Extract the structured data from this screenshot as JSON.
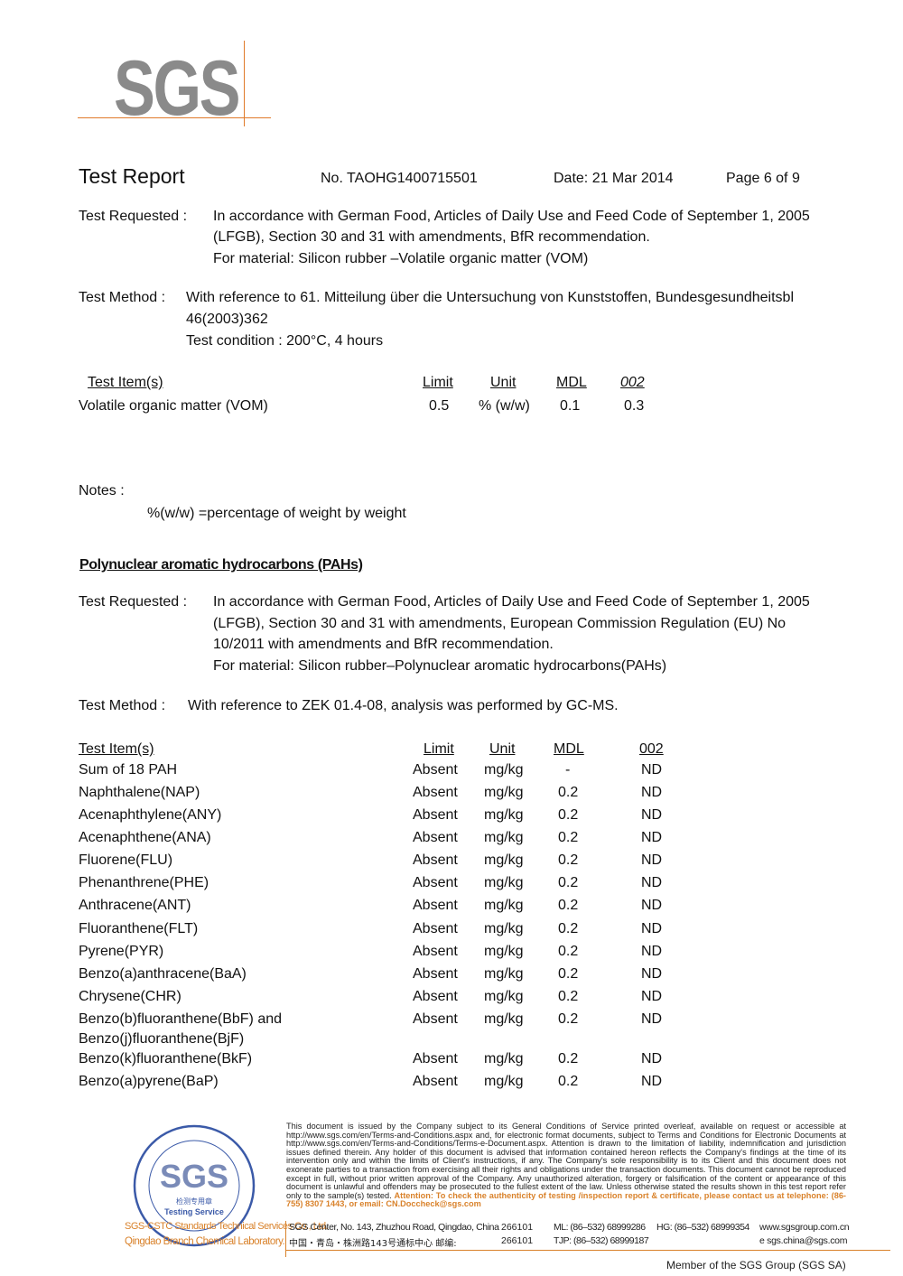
{
  "logo": {
    "text": "SGS"
  },
  "header": {
    "title": "Test Report",
    "number": "No. TAOHG1400715501",
    "date": "Date: 21 Mar 2014",
    "page": "Page 6 of 9"
  },
  "vom": {
    "requested_label": "Test Requested :",
    "requested_lines": [
      "In accordance with German Food, Articles of Daily Use and Feed Code of September 1, 2005",
      "(LFGB), Section 30 and 31 with amendments, BfR recommendation.",
      "For material: Silicon rubber –Volatile organic matter (VOM)"
    ],
    "method_label": "Test Method :",
    "method_lines": [
      "With reference to 61. Mitteilung über die Untersuchung von Kunststoffen, Bundesgesundheitsbl",
      "46(2003)362",
      "Test condition : 200°C, 4 hours"
    ],
    "headers": [
      "Test Item(s)",
      "Limit",
      "Unit",
      "MDL",
      "002"
    ],
    "rows": [
      [
        "Volatile organic matter (VOM)",
        "0.5",
        "% (w/w)",
        "0.1",
        "0.3"
      ]
    ],
    "notes_label": "Notes :",
    "note": "%(w/w) =percentage of weight by weight"
  },
  "pah": {
    "section_title": "Polynuclear aromatic hydrocarbons (PAHs)",
    "requested_label": "Test Requested :",
    "requested_lines": [
      "In accordance with German Food, Articles of Daily Use and Feed Code of September 1, 2005",
      "(LFGB), Section 30 and 31 with amendments, European Commission Regulation (EU) No",
      "10/2011 with amendments and BfR recommendation.",
      "For material: Silicon rubber–Polynuclear aromatic hydrocarbons(PAHs)"
    ],
    "method_label": "Test Method :",
    "method_line": "With reference to ZEK 01.4-08, analysis was performed by GC-MS.",
    "headers": [
      "Test Item(s)",
      "Limit",
      "Unit",
      "MDL",
      "002"
    ],
    "rows": [
      [
        "Sum of 18 PAH",
        "Absent",
        "mg/kg",
        "-",
        "ND"
      ],
      [
        "Naphthalene(NAP)",
        "Absent",
        "mg/kg",
        "0.2",
        "ND"
      ],
      [
        "Acenaphthylene(ANY)",
        "Absent",
        "mg/kg",
        "0.2",
        "ND"
      ],
      [
        "Acenaphthene(ANA)",
        "Absent",
        "mg/kg",
        "0.2",
        "ND"
      ],
      [
        "Fluorene(FLU)",
        "Absent",
        "mg/kg",
        "0.2",
        "ND"
      ],
      [
        "Phenanthrene(PHE)",
        "Absent",
        "mg/kg",
        "0.2",
        "ND"
      ],
      [
        "Anthracene(ANT)",
        "Absent",
        "mg/kg",
        "0.2",
        "ND"
      ],
      [
        "Fluoranthene(FLT)",
        "Absent",
        "mg/kg",
        "0.2",
        "ND"
      ],
      [
        "Pyrene(PYR)",
        "Absent",
        "mg/kg",
        "0.2",
        "ND"
      ],
      [
        "Benzo(a)anthracene(BaA)",
        "Absent",
        "mg/kg",
        "0.2",
        "ND"
      ],
      [
        "Chrysene(CHR)",
        "Absent",
        "mg/kg",
        "0.2",
        "ND"
      ],
      [
        "Benzo(b)fluoranthene(BbF) and",
        "Absent",
        "mg/kg",
        "0.2",
        "ND"
      ],
      [
        "Benzo(j)fluoranthene(BjF)",
        "",
        "",
        "",
        ""
      ],
      [
        "Benzo(k)fluoranthene(BkF)",
        "Absent",
        "mg/kg",
        "0.2",
        "ND"
      ],
      [
        "Benzo(a)pyrene(BaP)",
        "Absent",
        "mg/kg",
        "0.2",
        "ND"
      ]
    ]
  },
  "footer": {
    "disclaimer": "This document is issued by the Company subject to its General Conditions of Service printed overleaf, available on request or accessible at http://www.sgs.com/en/Terms-and-Conditions.aspx and, for electronic format documents, subject to Terms and Conditions for Electronic Documents at http://www.sgs.com/en/Terms-and-Conditions/Terms-e-Document.aspx. Attention is drawn to the limitation of liability, indemnification and jurisdiction issues defined therein. Any holder of this document is advised that information contained hereon reflects the Company's findings at the time of its intervention only and within the limits of Client's instructions, if any. The Company's sole responsibility is to its Client and this document does not exonerate parties to a transaction from exercising all their rights and obligations under the transaction documents. This document cannot be reproduced except in full, without prior written approval of the Company. Any unauthorized alteration, forgery or falsification of the content or appearance of this document is unlawful and offenders may be prosecuted to the fullest extent of the law. Unless otherwise stated the results shown in this test report refer only to the sample(s) tested.",
    "attention": "Attention: To check the authenticity of testing /inspection report & certificate, please contact us at telephone: (86-755) 8307 1443, or email: CN.Doccheck@sgs.com",
    "company_line1": "SGS-CSTC Standards Technical Services Co., Ltd.",
    "company_line2": "Qingdao Branch Chemical Laboratory.",
    "address_en": "SGS Center, No. 143, Zhuzhou Road, Qingdao, China",
    "postcode_en": "266101",
    "address_cn": "中国・青岛・株洲路143号通标中心 邮编:",
    "postcode_cn": "266101",
    "ml": "ML: (86–532) 68999286",
    "tjp": "TJP: (86–532) 68999187",
    "hg": "HG: (86–532) 68999354",
    "web": "www.sgsgroup.com.cn",
    "email": "e  sgs.china@sgs.com",
    "member": "Member of the SGS Group (SGS SA)"
  },
  "stamp": {
    "text": "SGS",
    "sub": "检测专用章",
    "service": "Testing Service"
  },
  "colors": {
    "accent": "#d9822b",
    "logo_gray": "#8a8a8a",
    "stamp_blue": "#3b5aa8"
  }
}
